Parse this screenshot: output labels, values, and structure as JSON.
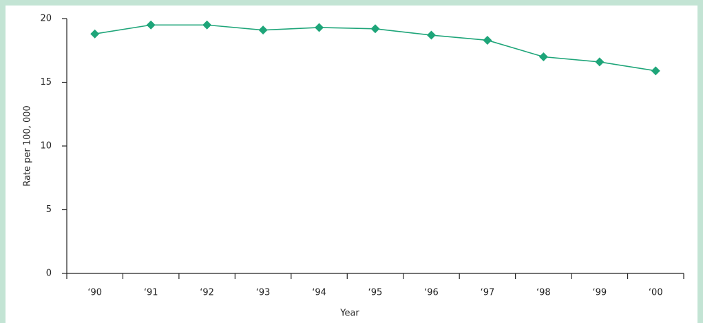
{
  "chart_data": {
    "type": "line",
    "x_label": "Year",
    "y_label": "Rate per 100, 000",
    "categories": [
      "‘90",
      "‘91",
      "‘92",
      "‘93",
      "‘94",
      "‘95",
      "‘96",
      "‘97",
      "‘98",
      "‘99",
      "‘00"
    ],
    "series": [
      {
        "color": "#1ea579",
        "values": [
          18.8,
          19.5,
          19.5,
          19.1,
          19.3,
          19.2,
          18.7,
          18.3,
          17.0,
          16.6,
          15.9
        ]
      }
    ],
    "ylim": [
      0,
      20
    ],
    "yticks": [
      0,
      5,
      10,
      15,
      20
    ],
    "grid": false,
    "marker": "diamond"
  }
}
